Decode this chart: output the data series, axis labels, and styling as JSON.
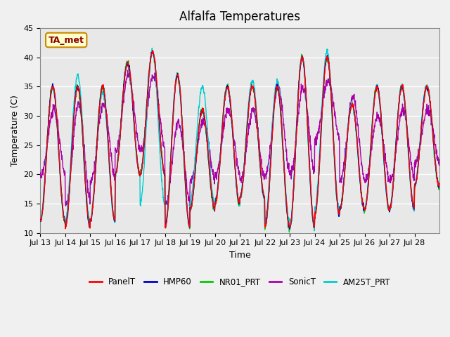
{
  "title": "Alfalfa Temperatures",
  "xlabel": "Time",
  "ylabel": "Temperature (C)",
  "ylim": [
    10,
    45
  ],
  "annotation": "TA_met",
  "series_names": [
    "PanelT",
    "HMP60",
    "NR01_PRT",
    "SonicT",
    "AM25T_PRT"
  ],
  "series_colors": [
    "#ff0000",
    "#0000cc",
    "#00cc00",
    "#aa00aa",
    "#00cccc"
  ],
  "xtick_labels": [
    "Jul 13",
    "Jul 14",
    "Jul 15",
    "Jul 16",
    "Jul 17",
    "Jul 18",
    "Jul 19",
    "Jul 20",
    "Jul 21",
    "Jul 22",
    "Jul 23",
    "Jul 24",
    "Jul 25",
    "Jul 26",
    "Jul 27",
    "Jul 28"
  ],
  "bg_color": "#e8e8e8",
  "grid_color": "#ffffff",
  "day_min_temps": [
    12,
    11,
    12,
    20,
    20,
    11,
    14,
    15,
    16,
    11,
    11,
    13,
    14,
    14,
    14,
    18
  ],
  "day_max_temps": [
    35,
    35,
    35,
    39,
    41,
    37,
    31,
    35,
    35,
    35,
    40,
    40,
    32,
    35,
    35,
    35
  ],
  "sonic_day_min": [
    20,
    15,
    19,
    24,
    24,
    15,
    19,
    20,
    19,
    20,
    20,
    26,
    19,
    19,
    19,
    22
  ],
  "sonic_day_max": [
    31,
    32,
    32,
    37,
    37,
    29,
    29,
    31,
    31,
    35,
    35,
    36,
    33,
    30,
    31,
    31
  ],
  "am25t_day_min": [
    12,
    12,
    12,
    20,
    15,
    11,
    15,
    15,
    16,
    12,
    11,
    14,
    14,
    14,
    14,
    18
  ],
  "am25t_day_max": [
    35,
    37,
    34,
    39,
    41,
    37,
    35,
    35,
    36,
    36,
    40,
    41,
    32,
    35,
    35,
    35
  ]
}
